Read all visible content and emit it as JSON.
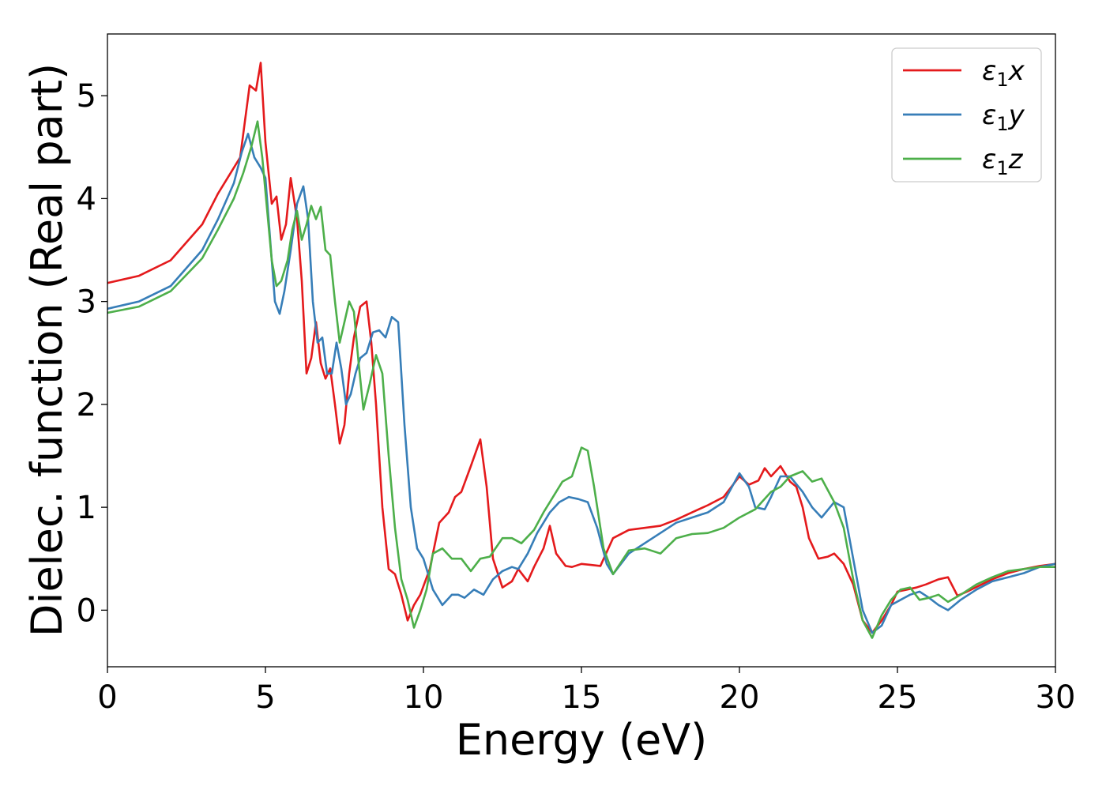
{
  "chart_data": {
    "type": "line",
    "title": "",
    "xlabel": "Energy (eV)",
    "ylabel": "Dielec. function (Real part)",
    "xlim": [
      0,
      30
    ],
    "ylim": [
      -0.55,
      5.6
    ],
    "xticks": [
      0,
      5,
      10,
      15,
      20,
      25,
      30
    ],
    "yticks": [
      0,
      1,
      2,
      3,
      4,
      5
    ],
    "grid": false,
    "legend_position": "top-right",
    "series": [
      {
        "name": "ε₁x",
        "legend_base": "ε",
        "legend_sub": "1",
        "legend_var": "x",
        "color": "#e41a1c",
        "x": [
          0,
          1,
          2,
          3,
          3.5,
          4,
          4.2,
          4.5,
          4.7,
          4.85,
          5.0,
          5.2,
          5.35,
          5.5,
          5.65,
          5.8,
          6.0,
          6.15,
          6.3,
          6.45,
          6.6,
          6.75,
          6.9,
          7.05,
          7.2,
          7.35,
          7.5,
          7.65,
          7.8,
          8.0,
          8.2,
          8.35,
          8.5,
          8.7,
          8.9,
          9.1,
          9.3,
          9.5,
          9.7,
          9.9,
          10.2,
          10.5,
          10.8,
          11.0,
          11.2,
          11.5,
          11.8,
          12.0,
          12.2,
          12.5,
          12.8,
          13.0,
          13.3,
          13.5,
          13.8,
          14.0,
          14.2,
          14.5,
          14.7,
          15.0,
          15.3,
          15.6,
          16.0,
          16.5,
          17.0,
          17.5,
          18.0,
          18.5,
          19.0,
          19.5,
          20.0,
          20.3,
          20.6,
          20.8,
          21.0,
          21.3,
          21.6,
          21.8,
          22.0,
          22.2,
          22.5,
          22.8,
          23.0,
          23.3,
          23.6,
          23.9,
          24.2,
          24.5,
          24.8,
          25.0,
          25.3,
          25.6,
          25.9,
          26.3,
          26.6,
          26.9,
          27.2,
          27.6,
          28.0,
          28.5,
          29.0,
          29.5,
          30.0
        ],
        "y": [
          3.18,
          3.25,
          3.4,
          3.75,
          4.05,
          4.3,
          4.4,
          5.1,
          5.05,
          5.32,
          4.55,
          3.95,
          4.02,
          3.6,
          3.75,
          4.2,
          3.8,
          3.2,
          2.3,
          2.45,
          2.8,
          2.4,
          2.25,
          2.35,
          2.0,
          1.62,
          1.8,
          2.3,
          2.65,
          2.95,
          3.0,
          2.6,
          2.0,
          1.0,
          0.4,
          0.35,
          0.15,
          -0.1,
          0.05,
          0.15,
          0.4,
          0.85,
          0.95,
          1.1,
          1.15,
          1.4,
          1.66,
          1.2,
          0.5,
          0.22,
          0.28,
          0.4,
          0.28,
          0.42,
          0.6,
          0.82,
          0.55,
          0.43,
          0.42,
          0.45,
          0.44,
          0.43,
          0.7,
          0.78,
          0.8,
          0.82,
          0.88,
          0.95,
          1.02,
          1.1,
          1.3,
          1.22,
          1.26,
          1.38,
          1.3,
          1.4,
          1.25,
          1.2,
          1.0,
          0.7,
          0.5,
          0.52,
          0.55,
          0.45,
          0.25,
          -0.1,
          -0.22,
          -0.1,
          0.05,
          0.18,
          0.2,
          0.22,
          0.25,
          0.3,
          0.32,
          0.14,
          0.18,
          0.24,
          0.3,
          0.36,
          0.4,
          0.43,
          0.45
        ]
      },
      {
        "name": "ε₁y",
        "legend_base": "ε",
        "legend_sub": "1",
        "legend_var": "y",
        "color": "#377eb8",
        "x": [
          0,
          1,
          2,
          3,
          3.5,
          4,
          4.25,
          4.45,
          4.65,
          4.85,
          5.0,
          5.15,
          5.3,
          5.45,
          5.6,
          5.8,
          6.0,
          6.2,
          6.35,
          6.5,
          6.65,
          6.8,
          6.95,
          7.1,
          7.25,
          7.4,
          7.55,
          7.7,
          7.85,
          8.0,
          8.2,
          8.4,
          8.6,
          8.8,
          9.0,
          9.2,
          9.4,
          9.6,
          9.8,
          10.0,
          10.3,
          10.6,
          10.9,
          11.1,
          11.3,
          11.6,
          11.9,
          12.2,
          12.5,
          12.8,
          13.0,
          13.3,
          13.6,
          14.0,
          14.3,
          14.6,
          14.9,
          15.2,
          15.5,
          15.8,
          16.0,
          16.5,
          17.0,
          17.5,
          18.0,
          18.5,
          19.0,
          19.5,
          20.0,
          20.3,
          20.5,
          20.8,
          21.0,
          21.3,
          21.6,
          22.0,
          22.3,
          22.6,
          23.0,
          23.3,
          23.6,
          23.9,
          24.2,
          24.5,
          24.8,
          25.1,
          25.4,
          25.7,
          26.0,
          26.3,
          26.6,
          27.0,
          27.5,
          28.0,
          28.5,
          29.0,
          29.5,
          30.0
        ],
        "y": [
          2.93,
          3.0,
          3.15,
          3.5,
          3.8,
          4.15,
          4.45,
          4.63,
          4.4,
          4.3,
          4.2,
          3.6,
          3.0,
          2.88,
          3.1,
          3.5,
          3.95,
          4.12,
          3.8,
          3.0,
          2.6,
          2.65,
          2.3,
          2.3,
          2.6,
          2.35,
          2.0,
          2.1,
          2.3,
          2.45,
          2.5,
          2.7,
          2.72,
          2.65,
          2.85,
          2.8,
          1.8,
          1.0,
          0.6,
          0.5,
          0.2,
          0.05,
          0.15,
          0.15,
          0.12,
          0.2,
          0.15,
          0.3,
          0.38,
          0.42,
          0.4,
          0.55,
          0.75,
          0.95,
          1.05,
          1.1,
          1.08,
          1.05,
          0.8,
          0.45,
          0.35,
          0.55,
          0.65,
          0.75,
          0.85,
          0.9,
          0.95,
          1.05,
          1.33,
          1.2,
          1.0,
          0.98,
          1.1,
          1.3,
          1.3,
          1.15,
          1.0,
          0.9,
          1.05,
          1.0,
          0.5,
          0.0,
          -0.22,
          -0.15,
          0.05,
          0.1,
          0.15,
          0.18,
          0.12,
          0.05,
          0.0,
          0.1,
          0.2,
          0.28,
          0.32,
          0.36,
          0.42,
          0.45
        ]
      },
      {
        "name": "ε₁z",
        "legend_base": "ε",
        "legend_sub": "1",
        "legend_var": "z",
        "color": "#4daf4a",
        "x": [
          0,
          1,
          2,
          3,
          3.5,
          4,
          4.3,
          4.55,
          4.75,
          4.9,
          5.05,
          5.2,
          5.35,
          5.5,
          5.7,
          5.85,
          6.0,
          6.15,
          6.3,
          6.45,
          6.6,
          6.75,
          6.9,
          7.05,
          7.2,
          7.35,
          7.5,
          7.65,
          7.8,
          7.95,
          8.1,
          8.3,
          8.5,
          8.7,
          8.9,
          9.1,
          9.3,
          9.5,
          9.7,
          9.9,
          10.1,
          10.3,
          10.6,
          10.9,
          11.2,
          11.5,
          11.8,
          12.1,
          12.5,
          12.8,
          13.1,
          13.5,
          13.8,
          14.1,
          14.4,
          14.7,
          15.0,
          15.2,
          15.4,
          15.7,
          16.0,
          16.5,
          17.0,
          17.5,
          18.0,
          18.5,
          19.0,
          19.5,
          20.0,
          20.5,
          21.0,
          21.3,
          21.6,
          22.0,
          22.3,
          22.6,
          23.0,
          23.3,
          23.6,
          23.9,
          24.2,
          24.5,
          24.8,
          25.1,
          25.4,
          25.7,
          26.0,
          26.3,
          26.6,
          27.0,
          27.5,
          28.0,
          28.5,
          29.0,
          29.5,
          30.0
        ],
        "y": [
          2.89,
          2.95,
          3.1,
          3.42,
          3.7,
          4.0,
          4.25,
          4.5,
          4.75,
          4.4,
          3.9,
          3.4,
          3.15,
          3.2,
          3.4,
          3.7,
          3.88,
          3.6,
          3.75,
          3.93,
          3.8,
          3.92,
          3.5,
          3.45,
          3.0,
          2.6,
          2.8,
          3.0,
          2.9,
          2.4,
          1.95,
          2.2,
          2.48,
          2.3,
          1.5,
          0.8,
          0.3,
          0.1,
          -0.17,
          0.0,
          0.2,
          0.55,
          0.6,
          0.5,
          0.5,
          0.38,
          0.5,
          0.52,
          0.7,
          0.7,
          0.65,
          0.78,
          0.95,
          1.1,
          1.25,
          1.3,
          1.58,
          1.55,
          1.2,
          0.6,
          0.35,
          0.58,
          0.6,
          0.55,
          0.7,
          0.74,
          0.75,
          0.8,
          0.9,
          0.98,
          1.15,
          1.2,
          1.3,
          1.35,
          1.25,
          1.28,
          1.05,
          0.8,
          0.3,
          -0.1,
          -0.27,
          -0.05,
          0.1,
          0.2,
          0.22,
          0.1,
          0.12,
          0.15,
          0.08,
          0.15,
          0.25,
          0.32,
          0.38,
          0.4,
          0.42,
          0.42
        ]
      }
    ]
  }
}
